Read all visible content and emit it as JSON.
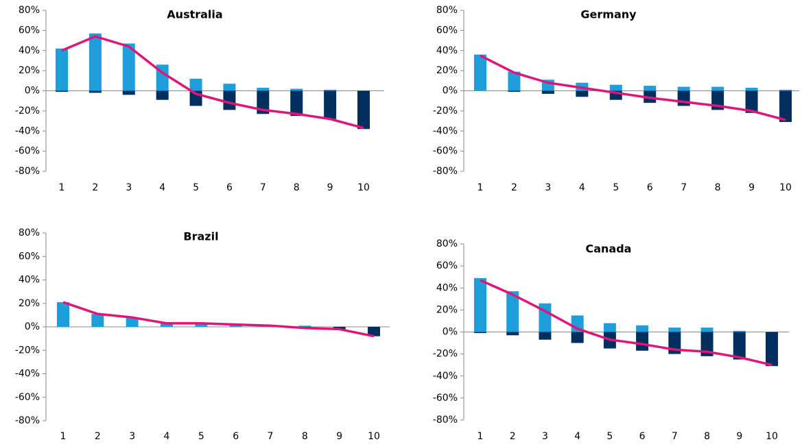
{
  "chart_data": [
    {
      "type": "bar",
      "title": "Australia",
      "categories": [
        1,
        2,
        3,
        4,
        5,
        6,
        7,
        8,
        9,
        10
      ],
      "series": [
        {
          "color": "#1e9fdc",
          "values": [
            42,
            57,
            47,
            26,
            12,
            7,
            3,
            2,
            1,
            0
          ]
        },
        {
          "color": "#002f5f",
          "values": [
            -1,
            -2,
            -4,
            -9,
            -15,
            -19,
            -23,
            -25,
            -28,
            -38
          ]
        },
        {
          "type": "line",
          "color": "#e0157a",
          "values": [
            40,
            54,
            44,
            18,
            -3,
            -12,
            -19,
            -23,
            -28,
            -37
          ]
        }
      ],
      "ylim": [
        -80,
        80
      ],
      "yticks": [
        {
          "value": -80,
          "label": "-80%"
        },
        {
          "value": -60,
          "label": "-60%"
        },
        {
          "value": -40,
          "label": "-40%"
        },
        {
          "value": -20,
          "label": "-20%"
        },
        {
          "value": 0,
          "label": "0%"
        },
        {
          "value": 20,
          "label": "20%"
        },
        {
          "value": 40,
          "label": "40%"
        },
        {
          "value": 60,
          "label": "60%"
        },
        {
          "value": 80,
          "label": "80%"
        }
      ]
    },
    {
      "type": "bar",
      "title": "Germany",
      "categories": [
        1,
        2,
        3,
        4,
        5,
        6,
        7,
        8,
        9,
        10
      ],
      "series": [
        {
          "color": "#1e9fdc",
          "values": [
            36,
            19,
            11,
            8,
            6,
            5,
            4,
            4,
            3,
            1
          ]
        },
        {
          "color": "#002f5f",
          "values": [
            0,
            -1,
            -3,
            -6,
            -9,
            -12,
            -15,
            -19,
            -22,
            -31
          ]
        },
        {
          "type": "line",
          "color": "#e0157a",
          "values": [
            35,
            18,
            8,
            3,
            -2,
            -7,
            -11,
            -15,
            -20,
            -29
          ]
        }
      ],
      "ylim": [
        -80,
        80
      ],
      "yticks": [
        {
          "value": -80,
          "label": "-80%"
        },
        {
          "value": -60,
          "label": "-60%"
        },
        {
          "value": -40,
          "label": "-40%"
        },
        {
          "value": -20,
          "label": "-20%"
        },
        {
          "value": 0,
          "label": "0%"
        },
        {
          "value": 20,
          "label": "20%"
        },
        {
          "value": 40,
          "label": "40%"
        },
        {
          "value": 60,
          "label": "60%"
        },
        {
          "value": 80,
          "label": "80%"
        }
      ]
    },
    {
      "type": "bar",
      "title": "Brazil",
      "categories": [
        1,
        2,
        3,
        4,
        5,
        6,
        7,
        8,
        9,
        10
      ],
      "series": [
        {
          "color": "#1e9fdc",
          "values": [
            21,
            11,
            8,
            4,
            3,
            2,
            1,
            1,
            0,
            0
          ]
        },
        {
          "color": "#002f5f",
          "values": [
            0,
            0,
            0,
            0,
            0,
            0,
            0,
            -1,
            -2,
            -8
          ]
        },
        {
          "type": "line",
          "color": "#e0157a",
          "values": [
            21,
            11,
            8,
            3,
            3,
            2,
            1,
            -1,
            -2,
            -8
          ]
        }
      ],
      "ylim": [
        -80,
        80
      ],
      "yticks": [
        {
          "value": -80,
          "label": "-80%"
        },
        {
          "value": -60,
          "label": "-60%"
        },
        {
          "value": -40,
          "label": "-40%"
        },
        {
          "value": -20,
          "label": "-20%"
        },
        {
          "value": 0,
          "label": "0%"
        },
        {
          "value": 20,
          "label": "20%"
        },
        {
          "value": 40,
          "label": "40%"
        },
        {
          "value": 60,
          "label": "60%"
        },
        {
          "value": 80,
          "label": "80%"
        }
      ]
    },
    {
      "type": "bar",
      "title": "Canada",
      "categories": [
        1,
        2,
        3,
        4,
        5,
        6,
        7,
        8,
        9,
        10
      ],
      "series": [
        {
          "color": "#1e9fdc",
          "values": [
            49,
            37,
            26,
            15,
            8,
            6,
            4,
            4,
            1,
            0
          ]
        },
        {
          "color": "#002f5f",
          "values": [
            -1,
            -3,
            -7,
            -10,
            -15,
            -17,
            -20,
            -22,
            -25,
            -31
          ]
        },
        {
          "type": "line",
          "color": "#e0157a",
          "values": [
            47,
            34,
            19,
            3,
            -7,
            -11,
            -16,
            -18,
            -23,
            -30
          ]
        }
      ],
      "ylim": [
        -80,
        80
      ],
      "yticks": [
        {
          "value": -80,
          "label": "-80%"
        },
        {
          "value": -60,
          "label": "-60%"
        },
        {
          "value": -40,
          "label": "-40%"
        },
        {
          "value": -20,
          "label": "-20%"
        },
        {
          "value": 0,
          "label": "0%"
        },
        {
          "value": 20,
          "label": "20%"
        },
        {
          "value": 40,
          "label": "40%"
        },
        {
          "value": 60,
          "label": "60%"
        },
        {
          "value": 80,
          "label": "80%"
        }
      ]
    }
  ]
}
